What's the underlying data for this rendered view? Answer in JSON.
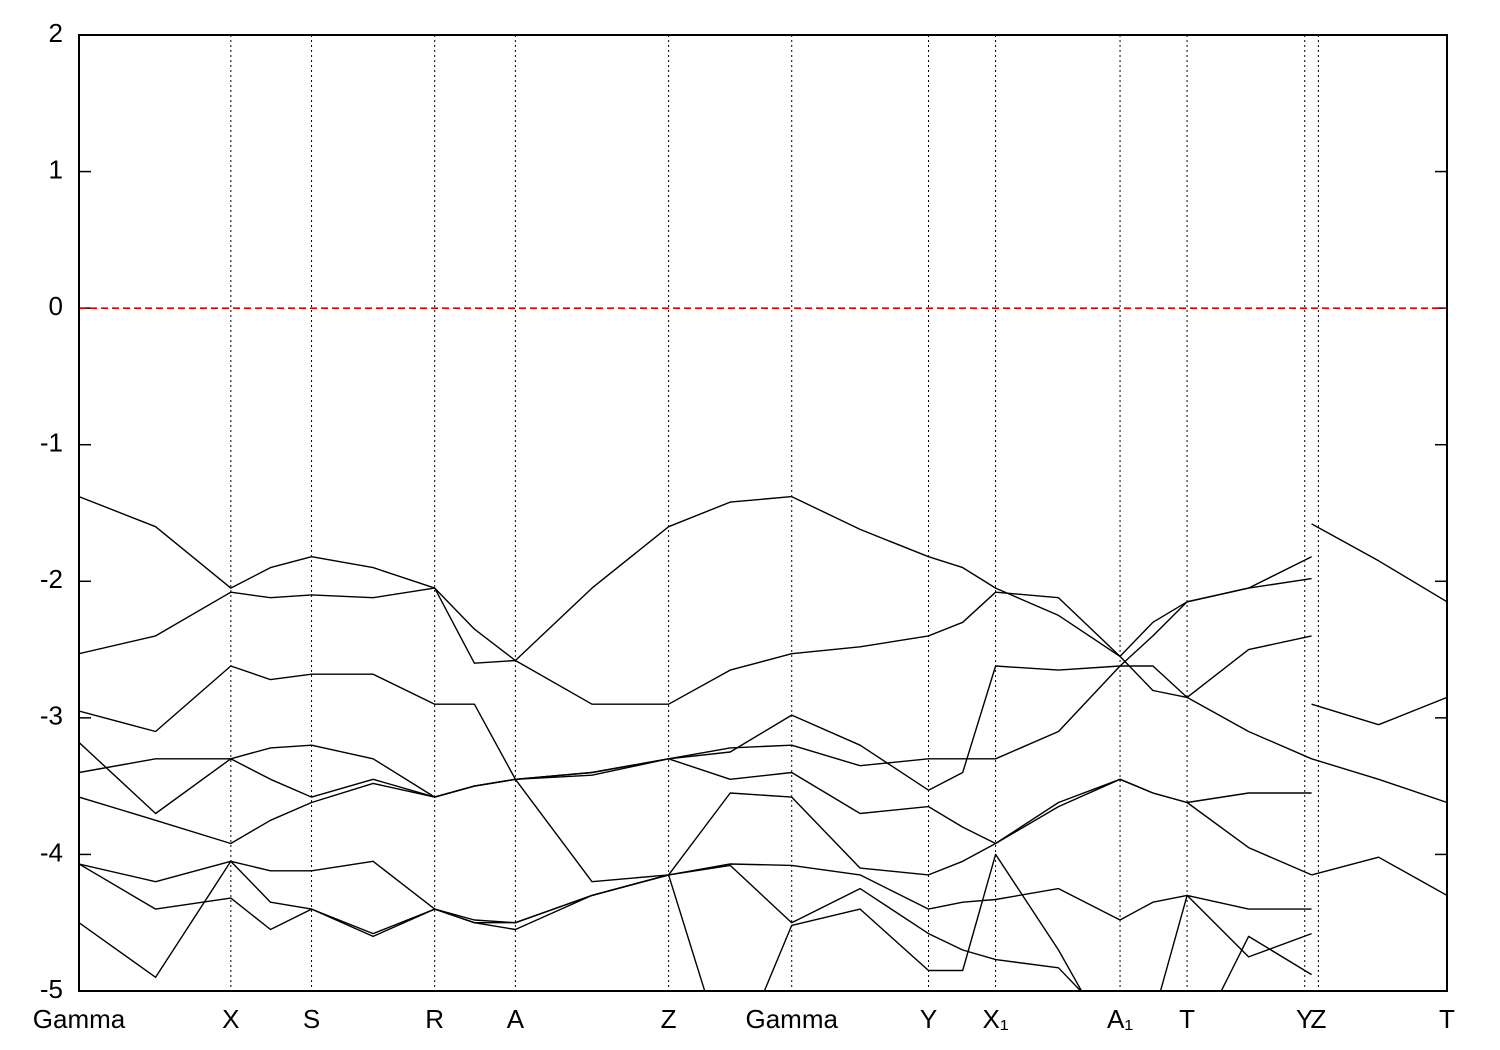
{
  "chart_data": {
    "type": "line",
    "x": [
      0,
      0.056,
      0.111,
      0.14,
      0.17,
      0.215,
      0.26,
      0.289,
      0.319,
      0.375,
      0.431,
      0.476,
      0.521,
      0.571,
      0.621,
      0.646,
      0.67,
      0.716,
      0.761,
      0.785,
      0.81,
      0.855,
      0.901,
      0.901,
      0.901,
      0.95,
      1
    ],
    "series": [
      {
        "values": [
          -1.38,
          -1.6,
          -2.05,
          -1.9,
          -1.82,
          -1.9,
          -2.05,
          -2.35,
          -2.58,
          -2.05,
          -1.6,
          -1.42,
          -1.38,
          -1.62,
          -1.82,
          -1.9,
          -2.05,
          -2.25,
          -2.55,
          -2.3,
          -2.15,
          -2.05,
          -1.82,
          null,
          -1.58,
          -1.85,
          -2.15
        ]
      },
      {
        "values": [
          -2.53,
          -2.4,
          -2.08,
          -2.12,
          -2.1,
          -2.12,
          -2.05,
          -2.6,
          -2.58,
          -2.9,
          -2.9,
          -2.65,
          -2.53,
          -2.48,
          -2.4,
          -2.3,
          -2.08,
          -2.12,
          -2.55,
          -2.8,
          -2.85,
          -2.5,
          -2.4,
          null,
          -2.9,
          -3.05,
          -2.85
        ]
      },
      {
        "values": [
          -2.95,
          -3.1,
          -2.62,
          -2.72,
          -2.68,
          -2.68,
          -2.9,
          -2.9,
          -3.45,
          -3.4,
          -3.3,
          -3.22,
          -3.2,
          -3.35,
          -3.3,
          -3.3,
          -3.3,
          -3.1,
          -2.62,
          -2.62,
          -2.85,
          -3.1,
          -3.3,
          null,
          -3.3,
          -3.45,
          -3.62
        ]
      },
      {
        "values": [
          -3.4,
          -3.3,
          -3.3,
          -3.22,
          -3.2,
          -3.3,
          -3.58,
          -3.5,
          -3.45,
          -3.4,
          -3.3,
          -3.25,
          -2.98,
          -3.2,
          -3.53,
          -3.4,
          -2.62,
          -2.65,
          -2.62,
          -2.4,
          -2.15,
          -2.05,
          -1.98,
          null,
          -4.15,
          -4.02,
          -4.3
        ]
      },
      {
        "values": [
          -3.18,
          -3.7,
          -3.3,
          -3.45,
          -3.58,
          -3.45,
          -3.58,
          -3.5,
          -3.45,
          -3.42,
          -3.3,
          -3.45,
          -3.4,
          -3.7,
          -3.65,
          -3.8,
          -3.92,
          -3.65,
          -3.45,
          -3.55,
          -3.62,
          -3.55,
          -3.55,
          null,
          null,
          null,
          null
        ]
      },
      {
        "values": [
          -3.58,
          -3.75,
          -3.92,
          -3.75,
          -3.62,
          -3.48,
          -3.58,
          -3.5,
          -3.45,
          -4.2,
          -4.15,
          -3.55,
          -3.58,
          -4.1,
          -4.15,
          -4.05,
          -3.92,
          -3.62,
          -3.45,
          -3.55,
          -3.62,
          -3.95,
          -4.15,
          null,
          null,
          null,
          null
        ]
      },
      {
        "values": [
          -4.07,
          -4.2,
          -4.05,
          -4.12,
          -4.12,
          -4.05,
          -4.4,
          -4.48,
          -4.5,
          -4.3,
          -4.15,
          -4.07,
          -4.08,
          -4.15,
          -4.4,
          -4.35,
          -4.33,
          -4.25,
          -4.48,
          -4.35,
          -4.3,
          -4.4,
          -4.4,
          null,
          null,
          null,
          null
        ]
      },
      {
        "values": [
          -4.5,
          -4.9,
          -4.05,
          -4.35,
          -4.4,
          -4.6,
          -4.4,
          -4.5,
          -4.5,
          -4.3,
          -4.15,
          -4.08,
          -4.5,
          -4.25,
          -4.58,
          -4.7,
          -4.77,
          -4.83,
          -5.3,
          -5.2,
          -4.3,
          -4.75,
          -4.58,
          null,
          null,
          null,
          null
        ]
      },
      {
        "values": [
          -4.07,
          -4.4,
          -4.32,
          -4.55,
          -4.4,
          -4.58,
          -4.4,
          -4.5,
          -4.55,
          -4.3,
          -4.15,
          -5.6,
          -4.52,
          -4.4,
          -4.85,
          -4.85,
          -4.0,
          -4.7,
          -5.5,
          -5.6,
          -5.5,
          -4.6,
          -4.88,
          null,
          null,
          null,
          null
        ]
      }
    ],
    "line_color": "#000000",
    "xlim": [
      0,
      1
    ],
    "ylim": [
      -5,
      2
    ],
    "xticks": [
      {
        "value": 0,
        "label": "Gamma"
      },
      {
        "value": 0.111,
        "label": "X"
      },
      {
        "value": 0.17,
        "label": "S"
      },
      {
        "value": 0.26,
        "label": "R"
      },
      {
        "value": 0.319,
        "label": "A"
      },
      {
        "value": 0.431,
        "label": "Z"
      },
      {
        "value": 0.521,
        "label": "Gamma"
      },
      {
        "value": 0.621,
        "label": "Y"
      },
      {
        "value": 0.67,
        "label": "X₁"
      },
      {
        "value": 0.761,
        "label": "A₁"
      },
      {
        "value": 0.81,
        "label": "T"
      },
      {
        "value": 0.896,
        "label": "Y"
      },
      {
        "value": 0.906,
        "label": "Z"
      },
      {
        "value": 1,
        "label": "T"
      }
    ],
    "yticks": [
      2,
      1,
      0,
      -1,
      -2,
      -3,
      -4,
      -5
    ],
    "vertical_grid": true,
    "reference_line": {
      "value": 0,
      "color": "#e00000"
    }
  }
}
